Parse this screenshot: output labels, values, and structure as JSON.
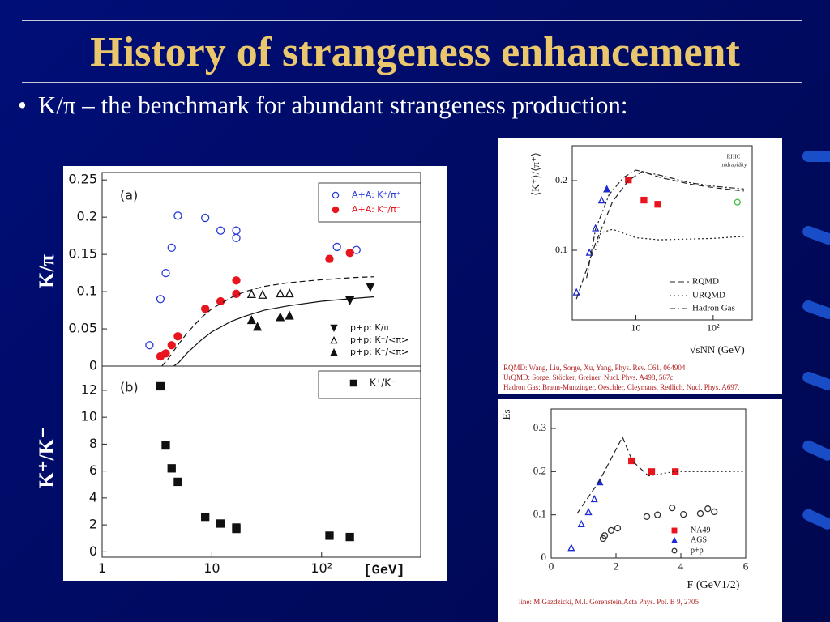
{
  "slide": {
    "title": "History of strangeness enhancement",
    "bullet": "K/π – the benchmark for abundant strangeness production:"
  },
  "chart_data": [
    {
      "type": "scatter",
      "ylabel": "K/π",
      "annotations": [
        "(a)"
      ],
      "xlog": true,
      "xlim": [
        1,
        800
      ],
      "ylim": [
        0,
        0.26
      ],
      "yticks": [
        0,
        0.05,
        0.1,
        0.15,
        0.2,
        0.25
      ],
      "series": [
        {
          "name": "A+A: K⁺/π⁺",
          "color": "#2a3cd8",
          "marker": "circle-open",
          "x": [
            2.7,
            3.4,
            3.8,
            4.3,
            4.9,
            8.7,
            12,
            16.7,
            16.7,
            138,
            208
          ],
          "values": [
            0.028,
            0.09,
            0.125,
            0.159,
            0.202,
            0.199,
            0.182,
            0.182,
            0.172,
            0.16,
            0.156
          ]
        },
        {
          "name": "A+A: K⁻/π⁻",
          "color": "#e8141e",
          "marker": "circle",
          "x": [
            3.4,
            3.8,
            4.3,
            4.9,
            8.7,
            12,
            16.7,
            16.7,
            118,
            181
          ],
          "values": [
            0.013,
            0.017,
            0.028,
            0.04,
            0.077,
            0.087,
            0.097,
            0.115,
            0.144,
            0.152
          ]
        },
        {
          "name": "p+p: K/π",
          "color": "#111111",
          "marker": "triangle-down",
          "x": [
            181,
            278
          ],
          "values": [
            0.088,
            0.106
          ]
        },
        {
          "name": "p+p: K⁺/<π>",
          "color": "#111111",
          "marker": "triangle-open",
          "x": [
            23,
            29,
            42,
            51
          ],
          "values": [
            0.097,
            0.096,
            0.098,
            0.098
          ]
        },
        {
          "name": "p+p: K⁻/<π>",
          "color": "#111111",
          "marker": "triangle",
          "x": [
            23,
            26,
            42,
            51
          ],
          "values": [
            0.062,
            0.053,
            0.066,
            0.068
          ]
        },
        {
          "color": "#111111",
          "marker": "none",
          "line": "dashed",
          "x": [
            3.5,
            4,
            5,
            6,
            8,
            10,
            15,
            20,
            30,
            50,
            100,
            200,
            300
          ],
          "values": [
            0,
            0.01,
            0.03,
            0.045,
            0.065,
            0.077,
            0.092,
            0.1,
            0.107,
            0.112,
            0.116,
            0.119,
            0.12
          ]
        },
        {
          "color": "#111111",
          "marker": "none",
          "line": "solid",
          "x": [
            4.5,
            5,
            6,
            8,
            10,
            15,
            20,
            30,
            50,
            100,
            200,
            300
          ],
          "values": [
            0,
            0.005,
            0.018,
            0.035,
            0.046,
            0.06,
            0.067,
            0.075,
            0.081,
            0.087,
            0.091,
            0.093
          ]
        }
      ]
    },
    {
      "type": "scatter",
      "ylabel": "K⁺/K⁻",
      "xlabel": "[GeV]",
      "annotations": [
        "(b)"
      ],
      "xlog": true,
      "xlim": [
        1,
        800
      ],
      "ylim": [
        -0.4,
        13.8
      ],
      "xticks": [
        1,
        10,
        {
          "value": 100,
          "label": "10²"
        }
      ],
      "yticks": [
        0,
        2,
        4,
        6,
        8,
        10,
        12
      ],
      "series": [
        {
          "name": "K⁺/K⁻",
          "color": "#111111",
          "marker": "square",
          "x": [
            3.4,
            3.8,
            4.3,
            4.9,
            8.7,
            12,
            16.7,
            16.7,
            118,
            181
          ],
          "values": [
            12.3,
            7.9,
            6.2,
            5.2,
            2.6,
            2.1,
            1.7,
            1.8,
            1.2,
            1.1
          ]
        }
      ]
    },
    {
      "type": "scatter",
      "ylabel": "⟨K⁺⟩/⟨π⁺⟩",
      "xlabel": "√sNN (GeV)",
      "annotations": [
        "RHIC",
        "midrapidity"
      ],
      "notes": [
        "RQMD: Wang, Liu, Sorge, Xu, Yang, Phys. Rev. C61, 064904",
        "UrQMD: Sorge, Stöcker, Greiner, Nucl. Phys. A498, 567c",
        "Hadron Gas: Braun-Munzinger, Oeschler, Cleymans, Redlich, Nucl. Phys. A697,"
      ],
      "xlog": true,
      "xlim": [
        1.5,
        320
      ],
      "ylim": [
        0,
        0.25
      ],
      "xticks": [
        10,
        {
          "value": 100,
          "label": "10²"
        }
      ],
      "yticks": [
        0.1,
        0.2
      ],
      "series": [
        {
          "color": "#1a2ad0",
          "marker": "triangle-open",
          "x": [
            1.7,
            2.5,
            3.0,
            3.6
          ],
          "values": [
            0.04,
            0.097,
            0.132,
            0.172
          ]
        },
        {
          "color": "#1a2ad0",
          "marker": "triangle",
          "x": [
            4.2
          ],
          "values": [
            0.188
          ]
        },
        {
          "color": "#e8141e",
          "marker": "square",
          "x": [
            8.0,
            12.7,
            19.2
          ],
          "values": [
            0.201,
            0.172,
            0.166
          ]
        },
        {
          "color": "#40c040",
          "marker": "circle-open",
          "x": [
            206
          ],
          "values": [
            0.169
          ]
        },
        {
          "name": "RQMD",
          "color": "#222222",
          "marker": "none",
          "line": "dashed",
          "x": [
            1.7,
            3,
            5,
            8,
            12,
            20,
            50,
            100,
            250
          ],
          "values": [
            0.03,
            0.11,
            0.17,
            0.2,
            0.213,
            0.205,
            0.195,
            0.19,
            0.185
          ]
        },
        {
          "name": "URQMD",
          "color": "#222222",
          "marker": "none",
          "line": "dotted",
          "x": [
            3,
            3.5,
            5,
            10,
            20,
            100,
            250
          ],
          "values": [
            0.1,
            0.125,
            0.13,
            0.118,
            0.115,
            0.117,
            0.12
          ]
        },
        {
          "name": "Hadron Gas",
          "color": "#222222",
          "marker": "none",
          "line": "dashdot",
          "x": [
            2.3,
            3,
            4.5,
            7,
            10,
            20,
            50,
            100,
            250
          ],
          "values": [
            0.06,
            0.13,
            0.18,
            0.205,
            0.215,
            0.208,
            0.197,
            0.192,
            0.188
          ]
        }
      ]
    },
    {
      "type": "scatter",
      "ylabel": "Es",
      "xlabel": "F (GeV1/2)",
      "notes": [
        "line: M.Gazdzicki, M.I. Gorenstein,Acta Phys. Pol. B 9, 2705"
      ],
      "xlog": false,
      "xlim": [
        0,
        6
      ],
      "ylim": [
        0,
        0.345
      ],
      "xticks": [
        0,
        2,
        4,
        6
      ],
      "yticks": [
        0,
        0.1,
        0.2,
        0.3
      ],
      "series": [
        {
          "name": "NA49",
          "color": "#e8141e",
          "marker": "square",
          "x": [
            2.48,
            3.1,
            3.83
          ],
          "values": [
            0.225,
            0.2,
            0.2
          ]
        },
        {
          "name": "AGS",
          "color": "#1a2ad0",
          "marker": "triangle",
          "x": [
            1.5
          ],
          "values": [
            0.176
          ]
        },
        {
          "color": "#1a2ad0",
          "marker": "triangle-open",
          "x": [
            0.62,
            0.93,
            1.15,
            1.33
          ],
          "values": [
            0.024,
            0.079,
            0.107,
            0.137
          ]
        },
        {
          "name": "p+p",
          "color": "#333333",
          "marker": "circle-open",
          "x": [
            1.6,
            1.65,
            1.85,
            2.05,
            2.95,
            3.28,
            3.73,
            4.08,
            4.6,
            4.83,
            5.03
          ],
          "values": [
            0.045,
            0.052,
            0.064,
            0.069,
            0.096,
            0.1,
            0.116,
            0.101,
            0.103,
            0.114,
            0.107
          ]
        },
        {
          "color": "#222222",
          "marker": "none",
          "line": "dashed",
          "x": [
            0.8,
            1.5,
            2.2,
            2.5,
            3
          ],
          "values": [
            0.103,
            0.18,
            0.28,
            0.225,
            0.19
          ]
        },
        {
          "color": "#222222",
          "marker": "none",
          "line": "dotted",
          "x": [
            3,
            3.8,
            6
          ],
          "values": [
            0.19,
            0.2,
            0.2
          ]
        }
      ]
    }
  ]
}
